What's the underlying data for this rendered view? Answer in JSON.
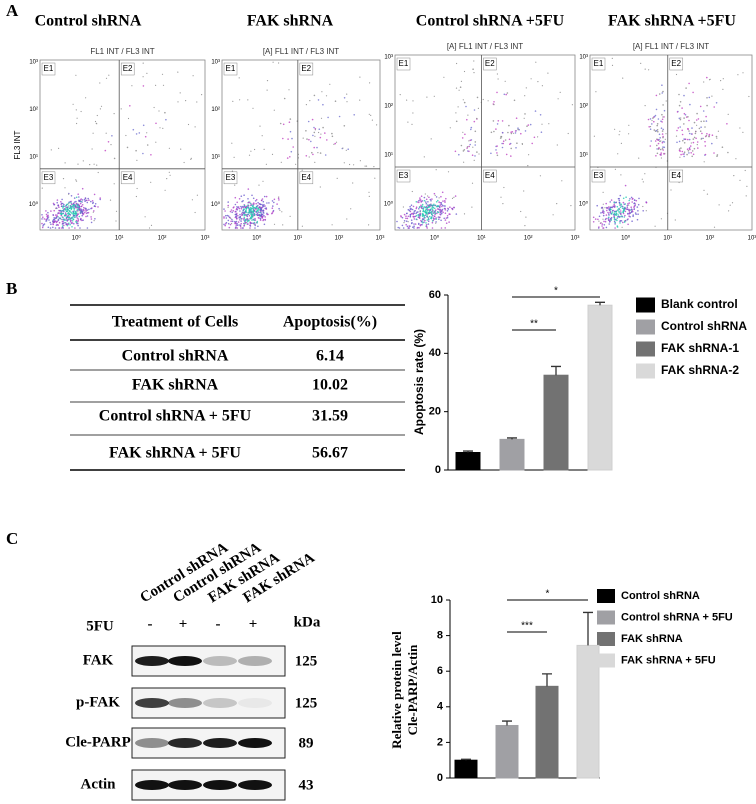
{
  "panel_labels": [
    "A",
    "B",
    "C"
  ],
  "flow": {
    "titles": [
      "Control shRNA",
      "FAK shRNA",
      "Control shRNA +5FU",
      "FAK shRNA +5FU"
    ],
    "plot_titles": [
      "FL1 INT / FL3 INT",
      "[A] FL1 INT / FL3 INT",
      "[A] FL1 INT / FL3 INT",
      "[A] FL1 INT / FL3 INT"
    ],
    "y_axis_label": "FL3 INT",
    "quadrants": [
      "E1",
      "E2",
      "E3",
      "E4"
    ],
    "ticks": [
      "10⁰",
      "10¹",
      "10²",
      "10³"
    ]
  },
  "table": {
    "header": [
      "Treatment of Cells",
      "Apoptosis(%)"
    ],
    "rows": [
      [
        "Control shRNA",
        6.14
      ],
      [
        "FAK shRNA",
        10.02
      ],
      [
        "Control shRNA + 5FU",
        31.59
      ],
      [
        "FAK shRNA + 5FU",
        56.67
      ]
    ]
  },
  "blot": {
    "lanes": [
      "Control shRNA",
      "Control shRNA",
      "FAK shRNA",
      "FAK shRNA"
    ],
    "treatment_label": "5FU",
    "treatment": [
      "-",
      "+",
      "-",
      "+"
    ],
    "kda_label": "kDa",
    "rows": [
      {
        "name": "FAK",
        "kda": 125
      },
      {
        "name": "p-FAK",
        "kda": 125
      },
      {
        "name": "Cle-PARP",
        "kda": 89
      },
      {
        "name": "Actin",
        "kda": 43
      }
    ]
  },
  "chart_data": [
    {
      "type": "bar",
      "y_label": "Apoptosis rate (%)",
      "series": [
        {
          "name": "Blank control",
          "color": "#000000",
          "values": [
            6
          ],
          "errors": [
            0.5
          ]
        },
        {
          "name": "Control shRNA",
          "color": "#a0a0a4",
          "values": [
            10.5
          ],
          "errors": [
            0.5
          ]
        },
        {
          "name": "FAK shRNA-1",
          "color": "#727272",
          "values": [
            32.5
          ],
          "errors": [
            3
          ]
        },
        {
          "name": "FAK shRNA-2",
          "color": "#d9d9d9",
          "values": [
            56.5
          ],
          "errors": [
            1
          ]
        }
      ],
      "ylim": [
        0,
        60
      ],
      "yticks": [
        0,
        20,
        40,
        60
      ],
      "annotations": [
        "**",
        "*"
      ]
    },
    {
      "type": "bar",
      "y_label": [
        "Relative protein level",
        "Cle-PARP/Actin"
      ],
      "series": [
        {
          "name": "Control shRNA",
          "color": "#000000",
          "values": [
            1
          ],
          "errors": [
            0.05
          ]
        },
        {
          "name": "Control shRNA + 5FU",
          "color": "#a0a0a4",
          "values": [
            2.95
          ],
          "errors": [
            0.25
          ]
        },
        {
          "name": "FAK shRNA",
          "color": "#727272",
          "values": [
            5.15
          ],
          "errors": [
            0.7
          ]
        },
        {
          "name": "FAK shRNA + 5FU",
          "color": "#d9d9d9",
          "values": [
            7.45
          ],
          "errors": [
            1.85
          ]
        }
      ],
      "ylim": [
        0,
        10
      ],
      "yticks": [
        0,
        2,
        4,
        6,
        8,
        10
      ],
      "annotations": [
        "***",
        "*"
      ]
    }
  ]
}
